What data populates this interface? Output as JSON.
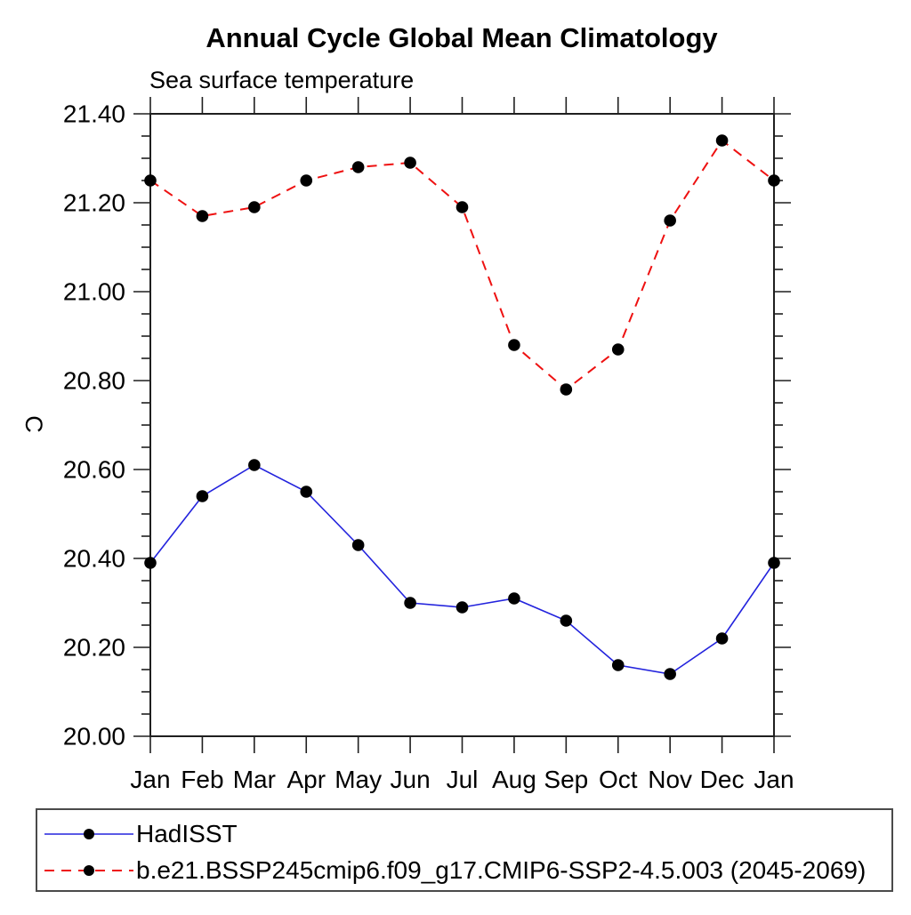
{
  "page": {
    "background": "#ffffff"
  },
  "chart_data": {
    "type": "line",
    "title": "Annual Cycle Global Mean Climatology",
    "subtitle": "Sea surface temperature",
    "ylabel": "C",
    "xlabel": "",
    "categories": [
      "Jan",
      "Feb",
      "Mar",
      "Apr",
      "May",
      "Jun",
      "Jul",
      "Aug",
      "Sep",
      "Oct",
      "Nov",
      "Dec",
      "Jan"
    ],
    "ylim": [
      20.0,
      21.4
    ],
    "ytick_major_interval": 0.2,
    "ytick_minor_interval": 0.05,
    "ytick_label_decimals": 2,
    "grid": false,
    "legend_position": "bottom-left-box",
    "axis_color": "#1f1f1f",
    "text_color": "#000000",
    "marker": {
      "shape": "circle",
      "color": "#000000"
    },
    "series": [
      {
        "name": "HadISST",
        "color": "#2323dd",
        "line_style": "solid",
        "values": [
          20.39,
          20.54,
          20.61,
          20.55,
          20.43,
          20.3,
          20.29,
          20.31,
          20.26,
          20.16,
          20.14,
          20.22,
          20.39
        ]
      },
      {
        "name": "b.e21.BSSP245cmip6.f09_g17.CMIP6-SSP2-4.5.003 (2045-2069)",
        "color": "#ee1111",
        "line_style": "dashed",
        "values": [
          21.25,
          21.17,
          21.19,
          21.25,
          21.28,
          21.29,
          21.19,
          20.88,
          20.78,
          20.87,
          21.16,
          21.34,
          21.25
        ]
      }
    ]
  }
}
